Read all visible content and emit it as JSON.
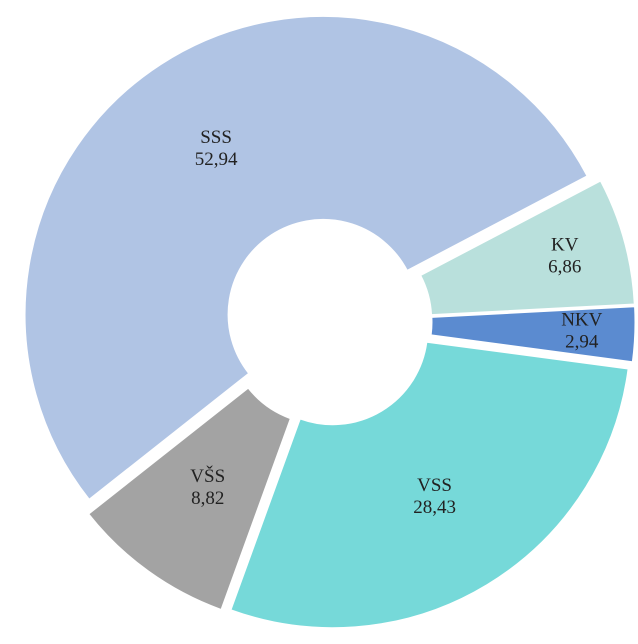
{
  "chart_data": {
    "type": "donut",
    "categories": [
      "NKV",
      "VSS",
      "VŠS",
      "SSS",
      "KV"
    ],
    "values": [
      2.94,
      28.43,
      8.82,
      52.94,
      6.86
    ],
    "value_labels": [
      "2,94",
      "28,43",
      "8,82",
      "52,94",
      "6,86"
    ],
    "colors": [
      "#5b8bd0",
      "#76d9d9",
      "#a3a3a3",
      "#b0c4e4",
      "#b9e0dc"
    ]
  }
}
